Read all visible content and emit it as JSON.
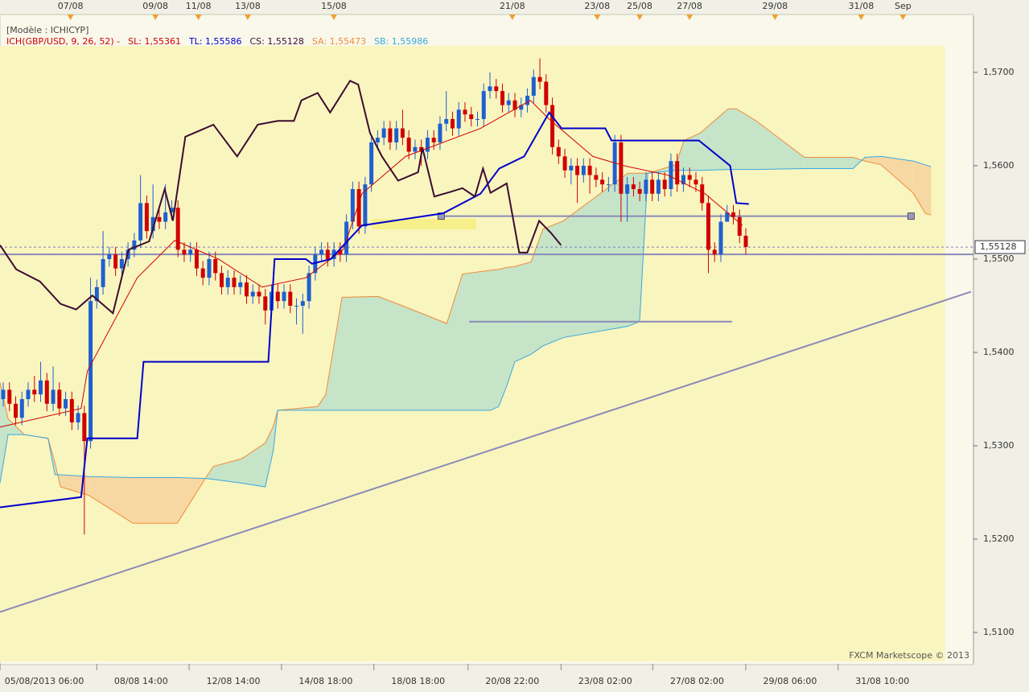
{
  "chart_data": {
    "type": "candlestick",
    "model": "[Modèle : ICHICYP]",
    "indicator": {
      "text": "ICH(GBP/USD, 9, 26, 52) -",
      "color": "#d00000"
    },
    "footer": "FXCM Marketscope © 2013",
    "up_color": "#1f5fd0",
    "down_color": "#d00000",
    "xlim": [
      0,
      156
    ],
    "ylim": [
      1.50664,
      1.57603
    ],
    "yticks": [
      {
        "value": 1.51,
        "label": "1,5100"
      },
      {
        "value": 1.52,
        "label": "1,5200"
      },
      {
        "value": 1.53,
        "label": "1,5300"
      },
      {
        "value": 1.54,
        "label": "1,5400"
      },
      {
        "value": 1.55,
        "label": "1,5500"
      },
      {
        "value": 1.56,
        "label": "1,5600"
      },
      {
        "value": 1.57,
        "label": "1,5700"
      }
    ],
    "xticks": [
      {
        "value": 7.1,
        "label": "05/08/2013 06:00"
      },
      {
        "value": 22.6,
        "label": "08/08 14:00"
      },
      {
        "value": 37.4,
        "label": "12/08 14:00"
      },
      {
        "value": 52.2,
        "label": "14/08 18:00"
      },
      {
        "value": 67.0,
        "label": "18/08 18:00"
      },
      {
        "value": 82.1,
        "label": "20/08 22:00"
      },
      {
        "value": 97.0,
        "label": "23/08 02:00"
      },
      {
        "value": 111.7,
        "label": "27/08 02:00"
      },
      {
        "value": 126.6,
        "label": "29/08 06:00"
      },
      {
        "value": 141.4,
        "label": "31/08 10:00"
      }
    ],
    "x2ticks": [
      {
        "value": 11.3,
        "label": "07/08"
      },
      {
        "value": 24.9,
        "label": "09/08"
      },
      {
        "value": 31.8,
        "label": "11/08"
      },
      {
        "value": 39.7,
        "label": "13/08"
      },
      {
        "value": 53.5,
        "label": "15/08"
      },
      {
        "value": 82.1,
        "label": "21/08"
      },
      {
        "value": 95.7,
        "label": "23/08"
      },
      {
        "value": 102.5,
        "label": "25/08"
      },
      {
        "value": 110.5,
        "label": "27/08"
      },
      {
        "value": 124.2,
        "label": "29/08"
      },
      {
        "value": 138.0,
        "label": "31/08"
      },
      {
        "value": 144.7,
        "label": "Sep"
      }
    ],
    "current_price": {
      "value": 1.55128,
      "label": "1,55128"
    },
    "x": [
      0,
      1,
      2,
      3,
      4,
      5,
      6,
      7,
      8,
      9,
      10,
      11,
      12,
      13,
      14,
      15,
      16,
      17,
      18,
      19,
      20,
      21,
      22,
      23,
      24,
      25,
      26,
      27,
      28,
      29,
      30,
      31,
      32,
      33,
      34,
      35,
      36,
      37,
      38,
      39,
      40,
      41,
      42,
      43,
      44,
      45,
      46,
      47,
      48,
      49,
      50,
      51,
      52,
      53,
      54,
      55,
      56,
      57,
      58,
      59,
      60,
      61,
      62,
      63,
      64,
      65,
      66,
      67,
      68,
      69,
      70,
      71,
      72,
      73,
      74,
      75,
      76,
      77,
      78,
      79,
      80,
      81,
      82,
      83,
      84,
      85,
      86,
      87,
      88,
      89,
      90,
      91,
      92,
      93,
      94,
      95,
      96,
      97,
      98,
      99,
      100,
      101,
      102,
      103,
      104,
      105,
      106,
      107,
      108,
      109,
      110,
      111,
      112,
      113,
      114,
      115,
      116,
      117,
      118,
      119
    ],
    "open": [
      1.535,
      1.536,
      1.5345,
      1.533,
      1.535,
      1.536,
      1.5355,
      1.537,
      1.5345,
      1.536,
      1.534,
      1.535,
      1.5325,
      1.5335,
      1.5305,
      1.5455,
      1.547,
      1.55,
      1.5505,
      1.549,
      1.55,
      1.551,
      1.552,
      1.556,
      1.553,
      1.5545,
      1.554,
      1.555,
      1.5555,
      1.551,
      1.5505,
      1.551,
      1.549,
      1.548,
      1.55,
      1.5485,
      1.547,
      1.548,
      1.547,
      1.5475,
      1.546,
      1.5465,
      1.546,
      1.5445,
      1.5465,
      1.5455,
      1.5465,
      1.545,
      1.545,
      1.5455,
      1.5485,
      1.5505,
      1.551,
      1.55,
      1.551,
      1.5505,
      1.554,
      1.5575,
      1.5535,
      1.558,
      1.5625,
      1.563,
      1.564,
      1.5625,
      1.564,
      1.563,
      1.5615,
      1.562,
      1.5615,
      1.563,
      1.5625,
      1.5645,
      1.565,
      1.564,
      1.566,
      1.5655,
      1.565,
      1.565,
      1.568,
      1.5685,
      1.568,
      1.5665,
      1.567,
      1.566,
      1.5665,
      1.5675,
      1.5695,
      1.569,
      1.5665,
      1.562,
      1.561,
      1.5595,
      1.56,
      1.559,
      1.56,
      1.559,
      1.5585,
      1.558,
      1.558,
      1.5625,
      1.557,
      1.558,
      1.5575,
      1.557,
      1.5585,
      1.557,
      1.5585,
      1.5575,
      1.5605,
      1.558,
      1.559,
      1.5585,
      1.558,
      1.556,
      1.551,
      1.5505,
      1.554,
      1.555,
      1.5545,
      1.5525
    ],
    "high": [
      1.5368,
      1.5368,
      1.5353,
      1.5358,
      1.5368,
      1.5375,
      1.539,
      1.5378,
      1.5385,
      1.5368,
      1.5358,
      1.5358,
      1.5343,
      1.5343,
      1.548,
      1.5478,
      1.553,
      1.5513,
      1.5513,
      1.5508,
      1.5518,
      1.5528,
      1.559,
      1.5568,
      1.558,
      1.5553,
      1.558,
      1.5563,
      1.5563,
      1.5518,
      1.5518,
      1.5518,
      1.5498,
      1.5508,
      1.5508,
      1.5493,
      1.5488,
      1.5488,
      1.5483,
      1.5483,
      1.5473,
      1.5473,
      1.5468,
      1.5473,
      1.5473,
      1.5473,
      1.5473,
      1.5458,
      1.5463,
      1.5493,
      1.5513,
      1.5518,
      1.5518,
      1.5518,
      1.5518,
      1.5548,
      1.5583,
      1.5583,
      1.5588,
      1.5633,
      1.5638,
      1.5648,
      1.5648,
      1.5648,
      1.566,
      1.5638,
      1.5628,
      1.5628,
      1.5638,
      1.5638,
      1.5653,
      1.568,
      1.5658,
      1.5668,
      1.5668,
      1.5663,
      1.5658,
      1.5688,
      1.57,
      1.5693,
      1.5688,
      1.5678,
      1.5678,
      1.5673,
      1.5683,
      1.5703,
      1.5715,
      1.5698,
      1.5673,
      1.5628,
      1.5618,
      1.5608,
      1.5608,
      1.5608,
      1.5608,
      1.5598,
      1.5593,
      1.5588,
      1.5633,
      1.5633,
      1.5588,
      1.5588,
      1.5583,
      1.5593,
      1.5593,
      1.5593,
      1.5593,
      1.5613,
      1.5613,
      1.5598,
      1.5598,
      1.5593,
      1.5588,
      1.5568,
      1.5518,
      1.5548,
      1.5558,
      1.5558,
      1.5553,
      1.5533
    ],
    "low": [
      1.5342,
      1.5337,
      1.5322,
      1.5322,
      1.5342,
      1.5347,
      1.5347,
      1.5337,
      1.5337,
      1.5332,
      1.5332,
      1.5317,
      1.5317,
      1.5205,
      1.5297,
      1.5447,
      1.5462,
      1.5492,
      1.5482,
      1.5482,
      1.5492,
      1.5502,
      1.5512,
      1.5522,
      1.5522,
      1.5532,
      1.5532,
      1.5542,
      1.5502,
      1.5497,
      1.5497,
      1.5482,
      1.5472,
      1.5472,
      1.5477,
      1.5462,
      1.5462,
      1.5462,
      1.5462,
      1.5452,
      1.5452,
      1.5452,
      1.543,
      1.5437,
      1.5447,
      1.5447,
      1.5442,
      1.543,
      1.542,
      1.5447,
      1.5477,
      1.5497,
      1.5492,
      1.5492,
      1.5497,
      1.5497,
      1.5532,
      1.5527,
      1.5527,
      1.5572,
      1.5617,
      1.5622,
      1.5617,
      1.5617,
      1.5622,
      1.5607,
      1.5607,
      1.56,
      1.5607,
      1.5617,
      1.5617,
      1.5637,
      1.5632,
      1.5632,
      1.5647,
      1.5642,
      1.5642,
      1.5642,
      1.5672,
      1.5672,
      1.5657,
      1.5657,
      1.5652,
      1.5652,
      1.5657,
      1.5667,
      1.5682,
      1.5657,
      1.5612,
      1.5602,
      1.5587,
      1.558,
      1.556,
      1.5582,
      1.557,
      1.5577,
      1.5572,
      1.5572,
      1.5572,
      1.554,
      1.554,
      1.5567,
      1.5562,
      1.5562,
      1.5562,
      1.5562,
      1.5567,
      1.5567,
      1.5572,
      1.5572,
      1.5577,
      1.5572,
      1.5552,
      1.5485,
      1.5497,
      1.5497,
      1.5542,
      1.5537,
      1.5517,
      1.5505
    ],
    "close": [
      1.536,
      1.5345,
      1.533,
      1.535,
      1.536,
      1.5355,
      1.537,
      1.5345,
      1.536,
      1.534,
      1.535,
      1.5325,
      1.5335,
      1.5305,
      1.5455,
      1.547,
      1.55,
      1.5505,
      1.549,
      1.55,
      1.551,
      1.552,
      1.556,
      1.553,
      1.5545,
      1.554,
      1.555,
      1.5555,
      1.551,
      1.5505,
      1.551,
      1.549,
      1.548,
      1.55,
      1.5485,
      1.547,
      1.548,
      1.547,
      1.5475,
      1.546,
      1.5465,
      1.546,
      1.5445,
      1.5465,
      1.5455,
      1.5465,
      1.545,
      1.545,
      1.5455,
      1.5485,
      1.5505,
      1.551,
      1.55,
      1.551,
      1.5505,
      1.554,
      1.5575,
      1.5535,
      1.558,
      1.5625,
      1.563,
      1.564,
      1.5625,
      1.564,
      1.563,
      1.5615,
      1.562,
      1.5615,
      1.563,
      1.5625,
      1.5645,
      1.565,
      1.564,
      1.566,
      1.5655,
      1.565,
      1.565,
      1.568,
      1.5685,
      1.568,
      1.5665,
      1.567,
      1.566,
      1.5665,
      1.5675,
      1.5695,
      1.569,
      1.5665,
      1.562,
      1.561,
      1.5595,
      1.56,
      1.559,
      1.56,
      1.559,
      1.5585,
      1.558,
      1.558,
      1.5625,
      1.557,
      1.558,
      1.5575,
      1.557,
      1.5585,
      1.557,
      1.5585,
      1.5575,
      1.5605,
      1.558,
      1.559,
      1.5585,
      1.558,
      1.556,
      1.551,
      1.5505,
      1.554,
      1.555,
      1.5545,
      1.5525,
      1.5513
    ],
    "series": [
      {
        "name": "SL: 1,55361",
        "color": "#d00000",
        "width": 1,
        "x": [
          0,
          13,
          14,
          22,
          28,
          35,
          42,
          49,
          55,
          58,
          65,
          77,
          85,
          88,
          95,
          100,
          107,
          113,
          119
        ],
        "values": [
          1.532,
          1.534,
          1.538,
          1.548,
          1.552,
          1.55,
          1.547,
          1.548,
          1.551,
          1.557,
          1.561,
          1.564,
          1.567,
          1.565,
          1.561,
          1.56,
          1.559,
          1.557,
          1.5536
        ]
      },
      {
        "name": "TL: 1,55586",
        "color": "#0000cc",
        "width": 2,
        "x": [
          0,
          13,
          14,
          22,
          23,
          43,
          44,
          49,
          50,
          53,
          58,
          71,
          77,
          80,
          84,
          88,
          90,
          97,
          98,
          112,
          117,
          118,
          120
        ],
        "values": [
          1.5234,
          1.5245,
          1.5308,
          1.5308,
          1.539,
          1.539,
          1.55,
          1.55,
          1.5495,
          1.55,
          1.5536,
          1.5549,
          1.557,
          1.5597,
          1.561,
          1.5657,
          1.564,
          1.564,
          1.5627,
          1.5627,
          1.56,
          1.556,
          1.5559
        ]
      },
      {
        "name": "CS: 1,55128",
        "color": "#3c0c30",
        "width": 2,
        "x": [
          0,
          2.6,
          6.4,
          9.7,
          12.2,
          14.8,
          18.1,
          20.6,
          23.9,
          26.4,
          27.7,
          29.7,
          34.2,
          38.0,
          41.3,
          44.5,
          47.1,
          48.3,
          50.9,
          52.9,
          56.1,
          57.4,
          59.3,
          61.2,
          63.8,
          67.0,
          67.7,
          69.6,
          72.2,
          74.1,
          76.1,
          77.4,
          78.6,
          81.2,
          83.2,
          84.5,
          86.4,
          88.3,
          89.9
        ],
        "values": [
          1.5515,
          1.5489,
          1.5476,
          1.5452,
          1.5446,
          1.5461,
          1.5442,
          1.551,
          1.5519,
          1.5575,
          1.5541,
          1.5631,
          1.5644,
          1.561,
          1.5644,
          1.5648,
          1.5648,
          1.567,
          1.5678,
          1.5657,
          1.5691,
          1.5687,
          1.5635,
          1.561,
          1.5584,
          1.5593,
          1.5619,
          1.5567,
          1.5572,
          1.5576,
          1.5567,
          1.5597,
          1.5571,
          1.5581,
          1.5507,
          1.5507,
          1.5541,
          1.5528,
          1.5515
        ]
      },
      {
        "name": "SA: 1,55473",
        "color": "#f08a3c",
        "width": 1,
        "x": [
          0,
          1.3,
          3.9,
          7.7,
          8.8,
          9.7,
          14.2,
          21.3,
          28.4,
          32.9,
          34.2,
          38.7,
          42.5,
          43.8,
          44.5,
          50.9,
          52.2,
          54.8,
          60.6,
          64.5,
          71.6,
          74.1,
          78.6,
          79.9,
          81.2,
          82.5,
          85.1,
          87.0,
          90.3,
          100.6,
          102.5,
          103.8,
          108.3,
          109.6,
          112.2,
          116.7,
          118.0,
          121.2,
          128.9,
          136.7,
          138.6,
          141.2,
          146.3,
          148.3,
          149.2
        ],
        "values": [
          1.5368,
          1.5329,
          1.5312,
          1.5308,
          1.5282,
          1.5256,
          1.5247,
          1.5217,
          1.5217,
          1.5265,
          1.5278,
          1.5286,
          1.5303,
          1.5321,
          1.5338,
          1.5342,
          1.5355,
          1.5459,
          1.546,
          1.545,
          1.5431,
          1.5484,
          1.5488,
          1.5489,
          1.5491,
          1.5492,
          1.5497,
          1.5532,
          1.5541,
          1.5592,
          1.5592,
          1.5592,
          1.5601,
          1.5627,
          1.5635,
          1.5661,
          1.5661,
          1.5648,
          1.5609,
          1.5609,
          1.5605,
          1.5601,
          1.5571,
          1.5549,
          1.5547
        ]
      },
      {
        "name": "SB: 1,55986",
        "color": "#3aa8e0",
        "width": 1,
        "x": [
          0,
          1.3,
          3.9,
          7.7,
          8.8,
          9.7,
          14.2,
          21.3,
          28.4,
          32.9,
          34.2,
          38.7,
          42.5,
          43.8,
          44.5,
          50.9,
          52.2,
          54.8,
          60.6,
          64.5,
          71.6,
          74.1,
          78.6,
          79.9,
          81.2,
          82.5,
          85.1,
          87.0,
          90.3,
          100.6,
          102.5,
          103.8,
          108.3,
          109.6,
          112.2,
          116.7,
          118.0,
          121.2,
          128.9,
          136.7,
          138.6,
          141.2,
          146.3,
          148.3,
          149.2
        ],
        "values": [
          1.526,
          1.5312,
          1.5312,
          1.5308,
          1.5269,
          1.5269,
          1.5267,
          1.5266,
          1.5266,
          1.5265,
          1.5264,
          1.526,
          1.5256,
          1.5295,
          1.5338,
          1.5338,
          1.5338,
          1.5338,
          1.5338,
          1.5338,
          1.5338,
          1.5338,
          1.5338,
          1.5342,
          1.5364,
          1.539,
          1.5398,
          1.5407,
          1.5416,
          1.5428,
          1.5433,
          1.5592,
          1.5595,
          1.5595,
          1.5595,
          1.5596,
          1.5596,
          1.5596,
          1.5597,
          1.5597,
          1.5609,
          1.561,
          1.5605,
          1.5601,
          1.5599
        ]
      }
    ],
    "cloud_colors": {
      "bull": "#c6e4c8",
      "bear": "#f8d8a2"
    },
    "drawings": [
      {
        "x": [
          0,
          155.6
        ],
        "values": [
          1.5122,
          1.5465
        ],
        "color": "#8a8ab8"
      },
      {
        "x": [
          0,
          156
        ],
        "values": [
          1.5505,
          1.5505
        ],
        "color": "#8a8ab8"
      },
      {
        "x": [
          70.7,
          146.0
        ],
        "values": [
          1.5546,
          1.5546
        ],
        "color": "#8a8ab8",
        "handles": true
      },
      {
        "x": [
          75.2,
          117.3
        ],
        "values": [
          1.5433,
          1.5433
        ],
        "color": "#8a8ab8"
      }
    ]
  }
}
